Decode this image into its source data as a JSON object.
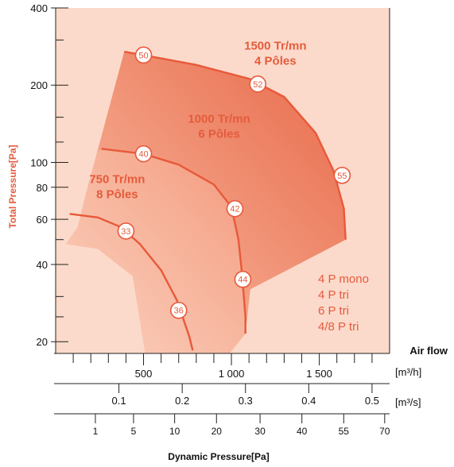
{
  "chart_data": {
    "type": "line",
    "title": "",
    "ylabel": "Total Pressure[Pa]",
    "xlabel": "Dynamic Pressure[Pa]",
    "y_scale": "log",
    "ylim": [
      18,
      400
    ],
    "y_ticks": [
      {
        "value": 400,
        "label": "400"
      },
      {
        "value": 200,
        "label": "200"
      },
      {
        "value": 100,
        "label": "100"
      },
      {
        "value": 80,
        "label": "80"
      },
      {
        "value": 60,
        "label": "60"
      },
      {
        "value": 40,
        "label": "40"
      },
      {
        "value": 20,
        "label": "20"
      }
    ],
    "y_minor_ticks": [
      300,
      150,
      120,
      50,
      30,
      25
    ],
    "x_axis_label": "Air flow",
    "flow_m3h": {
      "unit": "[m³/h]",
      "xlim": [
        0,
        1900
      ],
      "major_ticks": [
        {
          "value": 500,
          "label": "500"
        },
        {
          "value": 1000,
          "label": "1 000"
        },
        {
          "value": 1500,
          "label": "1 500"
        }
      ],
      "minor_step": 100
    },
    "flow_m3s": {
      "unit": "[m³/s]",
      "ticks": [
        {
          "value": 0.1,
          "label": "0.1"
        },
        {
          "value": 0.2,
          "label": "0.2"
        },
        {
          "value": 0.3,
          "label": "0.3"
        },
        {
          "value": 0.4,
          "label": "0.4"
        },
        {
          "value": 0.5,
          "label": "0.5"
        }
      ]
    },
    "dynamic_pressure": {
      "ticks": [
        {
          "value": 1,
          "flow_m3h": 226,
          "label": "1"
        },
        {
          "value": 5,
          "flow_m3h": 443,
          "label": "5"
        },
        {
          "value": 10,
          "flow_m3h": 677,
          "label": "10"
        },
        {
          "value": 20,
          "flow_m3h": 915,
          "label": "20"
        },
        {
          "value": 30,
          "flow_m3h": 1163,
          "label": "30"
        },
        {
          "value": 40,
          "flow_m3h": 1401,
          "label": "40"
        },
        {
          "value": 55,
          "flow_m3h": 1639,
          "label": "55"
        },
        {
          "value": 70,
          "flow_m3h": 1872,
          "label": "70"
        }
      ]
    },
    "series": [
      {
        "name": "1500 Tr/mn 4 Pôles",
        "label_lines": [
          "1500 Tr/mn",
          "4 Pôles"
        ],
        "label_at": {
          "flow_m3h": 1250,
          "pressure": 275
        },
        "points": [
          [
            390,
            270
          ],
          [
            500,
            262
          ],
          [
            800,
            240
          ],
          [
            1100,
            212
          ],
          [
            1300,
            180
          ],
          [
            1480,
            130
          ],
          [
            1580,
            93
          ],
          [
            1640,
            66
          ],
          [
            1650,
            50
          ]
        ],
        "markers": [
          {
            "label": "50",
            "flow_m3h": 500,
            "pressure": 262
          },
          {
            "label": "52",
            "flow_m3h": 1150,
            "pressure": 202
          },
          {
            "label": "55",
            "flow_m3h": 1630,
            "pressure": 89
          }
        ]
      },
      {
        "name": "1000 Tr/mn 6 Pôles",
        "label_lines": [
          "1000 Tr/mn",
          "6 Pôles"
        ],
        "label_at": {
          "flow_m3h": 930,
          "pressure": 143
        },
        "points": [
          [
            260,
            113
          ],
          [
            500,
            108
          ],
          [
            700,
            98
          ],
          [
            900,
            82
          ],
          [
            1000,
            67
          ],
          [
            1040,
            50
          ],
          [
            1060,
            37
          ],
          [
            1080,
            25
          ],
          [
            1080,
            21.5
          ]
        ],
        "markers": [
          {
            "label": "40",
            "flow_m3h": 500,
            "pressure": 108
          },
          {
            "label": "42",
            "flow_m3h": 1020,
            "pressure": 66
          },
          {
            "label": "44",
            "flow_m3h": 1065,
            "pressure": 35
          }
        ]
      },
      {
        "name": "750 Tr/mn 8 Pôles",
        "label_lines": [
          "750 Tr/mn",
          "8 Pôles"
        ],
        "label_at": {
          "flow_m3h": 350,
          "pressure": 83
        },
        "points": [
          [
            80,
            63
          ],
          [
            240,
            61
          ],
          [
            370,
            56
          ],
          [
            480,
            48
          ],
          [
            600,
            38
          ],
          [
            690,
            29
          ],
          [
            760,
            21
          ],
          [
            780,
            18.5
          ]
        ],
        "markers": [
          {
            "label": "33",
            "flow_m3h": 400,
            "pressure": 54
          },
          {
            "label": "36",
            "flow_m3h": 700,
            "pressure": 26.5
          }
        ]
      }
    ],
    "models": [
      "4 P mono",
      "4 P tri",
      "6 P tri",
      "4/8 P tri"
    ]
  },
  "colors": {
    "background": "#fcdacb",
    "region_light": "#f8b49e",
    "region_mid": "#f08f72",
    "region_dark": "#e9694a",
    "curve": "#e8593a",
    "text_accent": "#e55b3c",
    "axis": "#222222"
  }
}
